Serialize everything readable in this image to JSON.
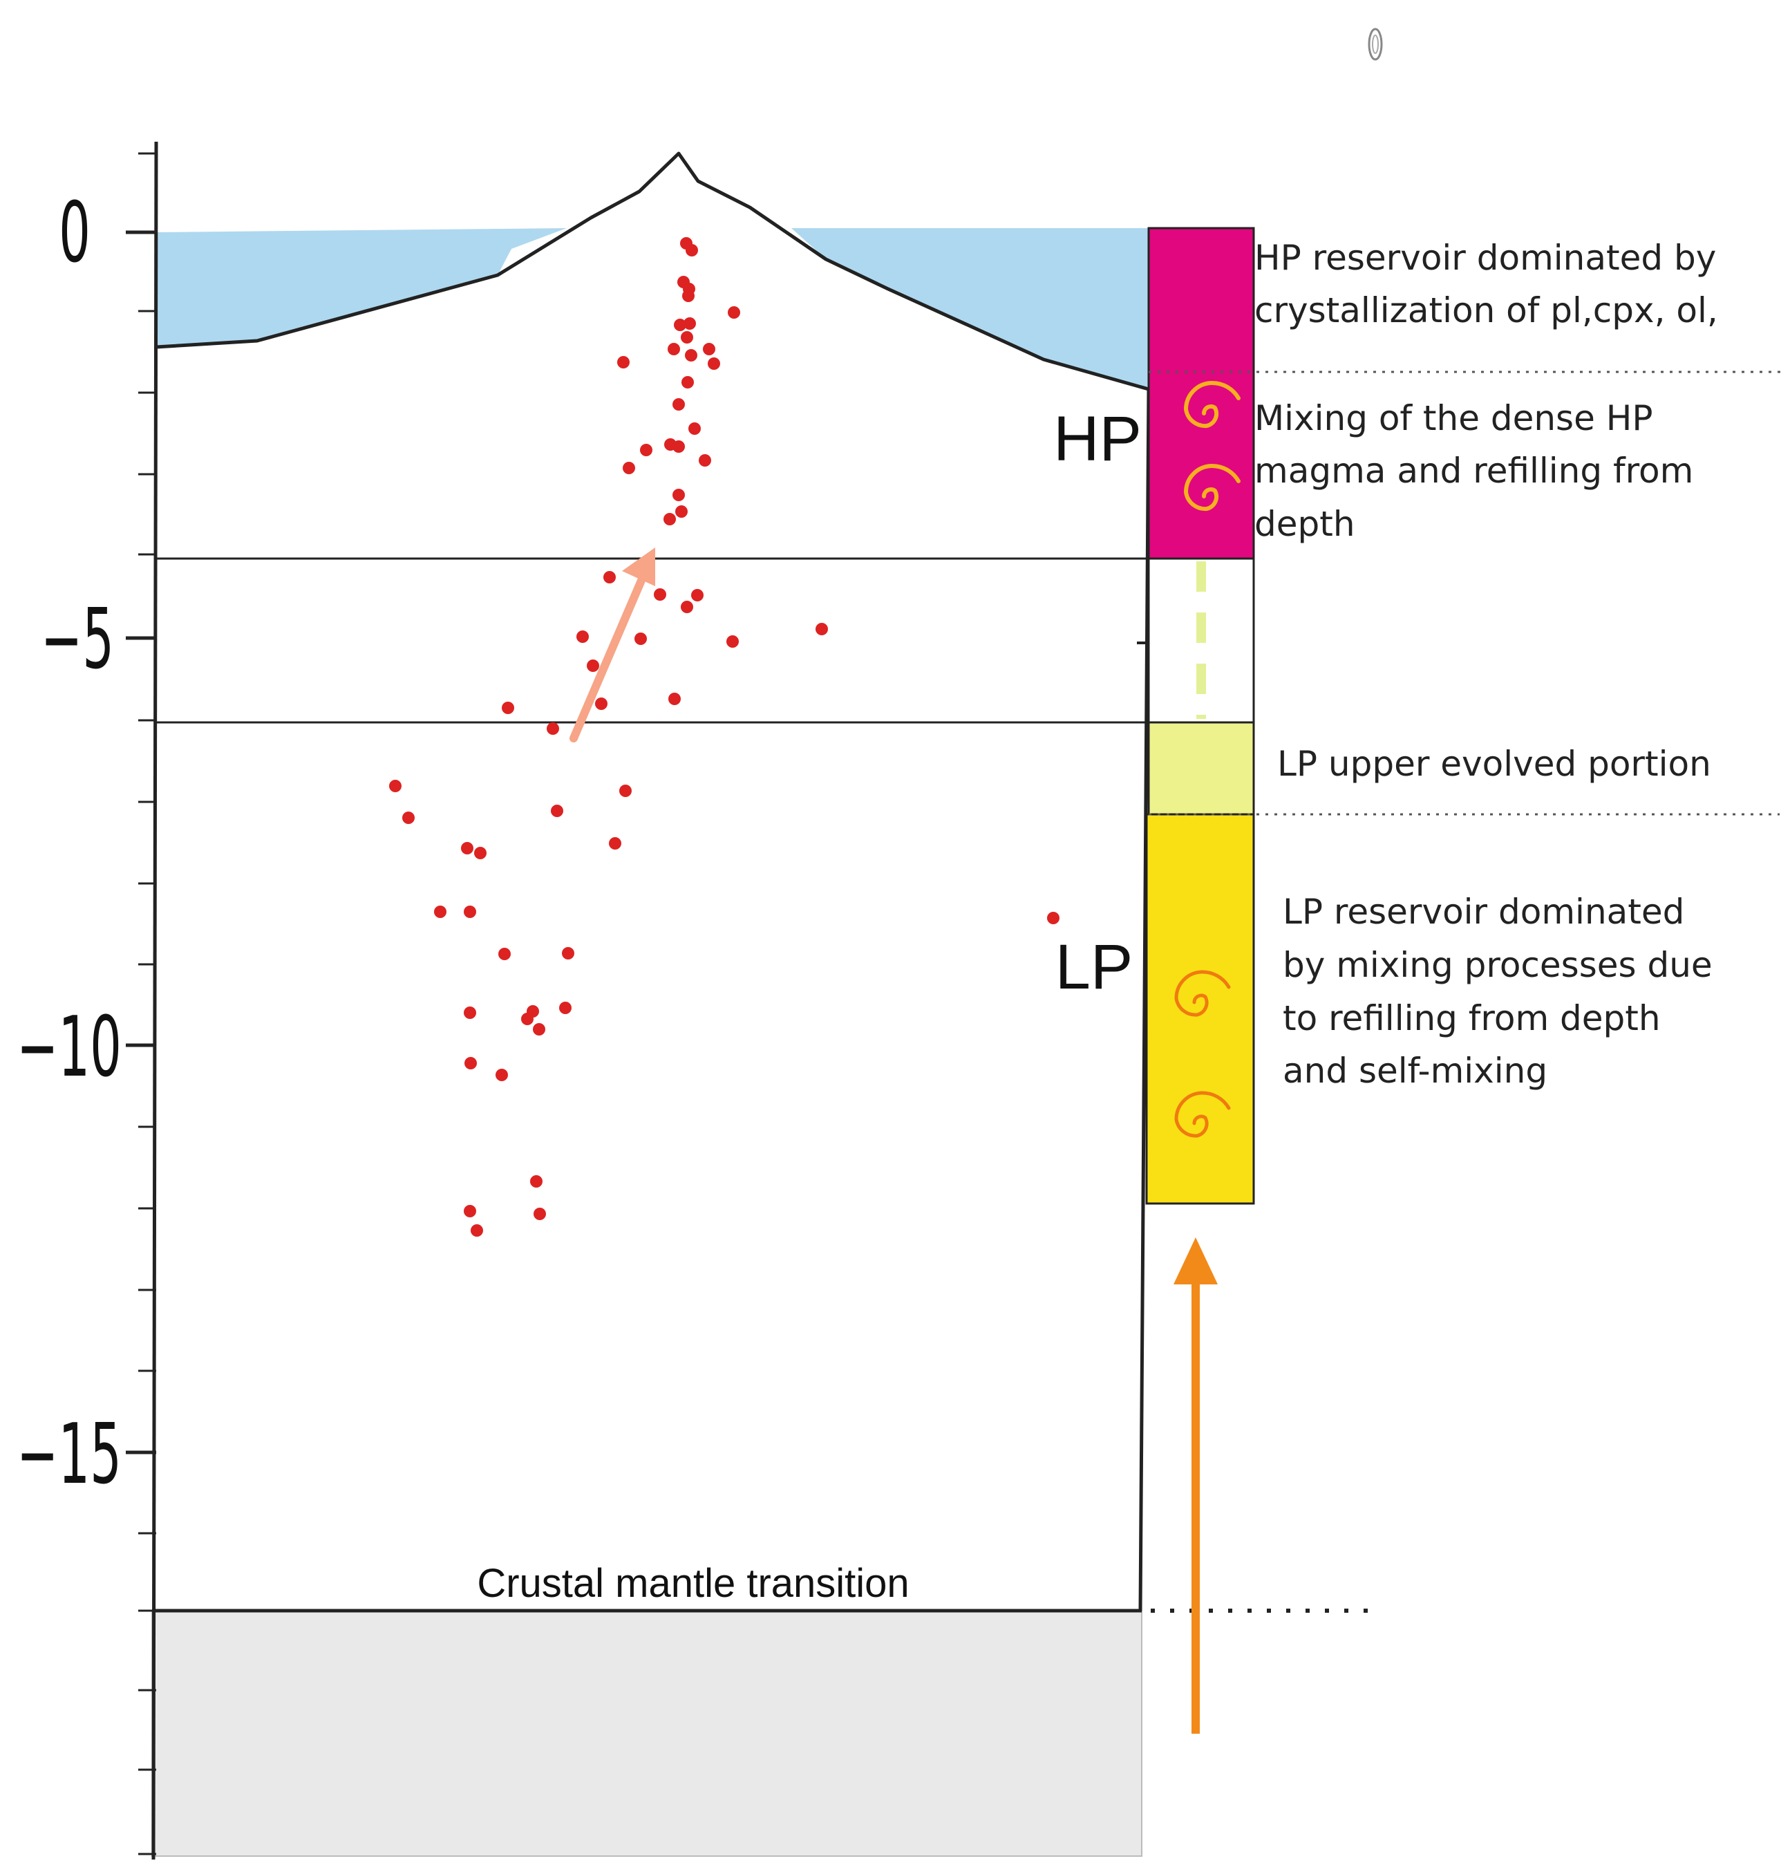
{
  "y_axis": {
    "tick_labels": [
      "0",
      "−5",
      "−10",
      "−15"
    ]
  },
  "zones": {
    "hp_label": "HP",
    "lp_label": "LP"
  },
  "annotations": {
    "hp_reservoir": [
      "HP reservoir dominated by",
      "crystallization of pl,cpx, ol,"
    ],
    "hp_mixing": [
      "Mixing of the dense HP",
      "magma and refilling from",
      "depth"
    ],
    "lp_upper": [
      "LP upper evolved portion"
    ],
    "lp_reservoir": [
      "LP reservoir dominated",
      "by mixing processes  due",
      "to refilling from depth",
      "and self-mixing"
    ],
    "moho": "Crustal mantle transition"
  },
  "colors": {
    "sea": "#aed8ef",
    "hp_box": "#e0077f",
    "lp_upper_box": "#eef28c",
    "lp_box": "#f8e014",
    "mantle": "#e9e9e9",
    "hypocenter": "#dd2222",
    "arrow_salmon": "#f7a487",
    "arrow_orange": "#f28a1a",
    "swirl": "#f5b020",
    "dash_green": "#e4f096"
  },
  "icons": [
    "swirl-icon",
    "up-arrow-icon"
  ]
}
